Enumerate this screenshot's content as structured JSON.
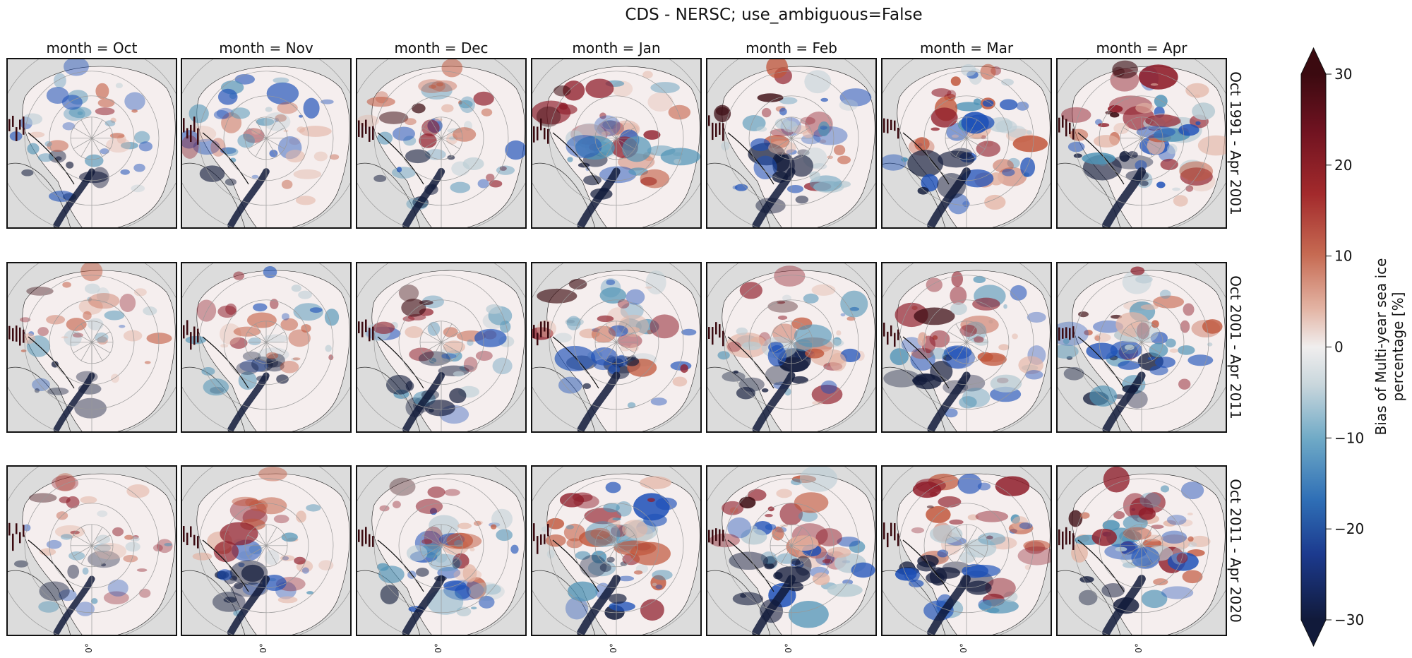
{
  "figure": {
    "title": "CDS - NERSC; use_ambiguous=False"
  },
  "chart_data": {
    "type": "heatmap",
    "title": "CDS - NERSC; use_ambiguous=False",
    "columns": [
      "month = Oct",
      "month = Nov",
      "month = Dec",
      "month = Jan",
      "month = Feb",
      "month = Mar",
      "month = Apr"
    ],
    "rows": [
      "Oct 1991 - Apr 2001",
      "Oct 2001 - Apr 2011",
      "Oct 2011 - Apr 2020"
    ],
    "panel_xtick_label": "0°",
    "projection": "north polar stereographic",
    "colorbar": {
      "label": "Bias of Multi-year sea ice percentage [%]",
      "label_lines": [
        "Bias of Multi-year sea ice",
        "percentage [%]"
      ],
      "vmin": -30,
      "vmax": 30,
      "ticks": [
        30,
        20,
        10,
        0,
        -10,
        -20,
        -30
      ],
      "tick_labels": [
        "30",
        "20",
        "10",
        "0",
        "−10",
        "−20",
        "−30"
      ],
      "extend": "both",
      "colormap": "diverging blue-white-red",
      "colors": {
        "max": "#3b0a10",
        "pos_high": "#8f1d2a",
        "pos_mid": "#c0553a",
        "pos_low": "#e3b4a4",
        "zero": "#f0eeee",
        "neg_low": "#b9ccd4",
        "neg_mid": "#4f93b6",
        "neg_high": "#1d50b8",
        "min": "#111a3a"
      }
    },
    "intensity_by_row": [
      [
        0.55,
        0.6,
        0.7,
        0.85,
        0.85,
        0.95,
        1.0
      ],
      [
        0.45,
        0.55,
        0.65,
        0.8,
        0.8,
        0.85,
        0.85
      ],
      [
        0.5,
        0.7,
        0.8,
        0.95,
        0.95,
        0.95,
        0.95
      ]
    ],
    "land_color": "#dcdcdc",
    "ocean_color": "#f5eeee"
  }
}
